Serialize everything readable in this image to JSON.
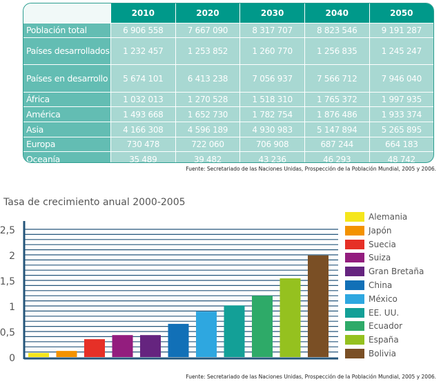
{
  "table": {
    "headers": [
      "2010",
      "2020",
      "2030",
      "2040",
      "2050"
    ],
    "rows": [
      {
        "label": "Población total",
        "values": [
          "6 906 558",
          "7 667 090",
          "8 317 707",
          "8 823 546",
          "9 191 287"
        ]
      },
      {
        "label": "Países desarrollados",
        "values": [
          "1 232 457",
          "1 253 852",
          "1 260 770",
          "1 256 835",
          "1 245 247"
        ]
      },
      {
        "label": "Países en desarrollo",
        "values": [
          "5 674 101",
          "6 413 238",
          "7 056 937",
          "7 566 712",
          "7 946 040"
        ]
      },
      {
        "label": "África",
        "values": [
          "1 032 013",
          "1 270 528",
          "1 518 310",
          "1 765 372",
          "1 997 935"
        ]
      },
      {
        "label": "América",
        "values": [
          "1 493 668",
          "1 652 730",
          "1 782 754",
          "1 876 486",
          "1 933 374"
        ]
      },
      {
        "label": "Asia",
        "values": [
          "4 166 308",
          "4 596 189",
          "4 930 983",
          "5 147 894",
          "5 265 895"
        ]
      },
      {
        "label": "Europa",
        "values": [
          "730 478",
          "722 060",
          "706 908",
          "687 244",
          "664 183"
        ]
      },
      {
        "label": "Oceanía",
        "values": [
          "35 489",
          "39 482",
          "43 236",
          "46 293",
          "48 742"
        ]
      }
    ],
    "source": "Fuente: Secretariado de las Naciones Unidas, Prospección de la Población Mundial, 2005 y 2006."
  },
  "chart_data": {
    "type": "bar",
    "title": "Tasa de crecimiento anual 2000-2005",
    "categories": [
      "Alemania",
      "Japón",
      "Suecia",
      "Suiza",
      "Gran Bretaña",
      "China",
      "México",
      "EE. UU.",
      "Ecuador",
      "España",
      "Bolivia"
    ],
    "values": [
      0.08,
      0.12,
      0.35,
      0.43,
      0.43,
      0.65,
      0.89,
      1.01,
      1.2,
      1.54,
      1.99
    ],
    "colors": [
      "#f5e61c",
      "#f39200",
      "#e63027",
      "#931d7e",
      "#65247f",
      "#1170b7",
      "#2ea7e0",
      "#13a097",
      "#2eaa68",
      "#95c11f",
      "#7a4f25"
    ],
    "ylim": [
      0,
      2.5
    ],
    "yticks": [
      "0",
      "0,5",
      "1",
      "1,5",
      "2",
      "2,5"
    ],
    "grid": true,
    "legend": "right",
    "source": "Fuente: Secretariado de las Naciones Unidas, Prospección de la Población Mundial, 2005 y 2006."
  }
}
